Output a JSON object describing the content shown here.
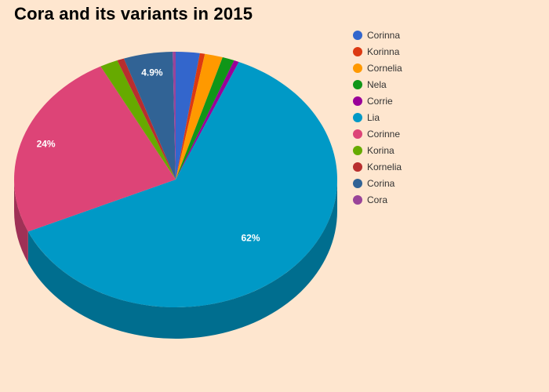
{
  "chart_data": {
    "type": "pie",
    "title": "Cora and its variants in 2015",
    "legend_position": "top-right",
    "slices": [
      {
        "name": "Corinna",
        "value": 2.4,
        "color": "#3366cc"
      },
      {
        "name": "Korinna",
        "value": 0.5,
        "color": "#dc3912"
      },
      {
        "name": "Cornelia",
        "value": 1.8,
        "color": "#ff9900"
      },
      {
        "name": "Nela",
        "value": 1.2,
        "color": "#109618"
      },
      {
        "name": "Corrie",
        "value": 0.5,
        "color": "#990099"
      },
      {
        "name": "Lia",
        "value": 62,
        "color": "#0099c6"
      },
      {
        "name": "Corinne",
        "value": 24,
        "color": "#dd4477"
      },
      {
        "name": "Korina",
        "value": 1.8,
        "color": "#66aa00"
      },
      {
        "name": "Kornelia",
        "value": 0.7,
        "color": "#b82e2e"
      },
      {
        "name": "Corina",
        "value": 4.9,
        "color": "#316395"
      },
      {
        "name": "Cora",
        "value": 0.3,
        "color": "#994499"
      }
    ],
    "data_labels": [
      {
        "slice": "Corina",
        "text": "4.9%"
      },
      {
        "slice": "Corinne",
        "text": "24%"
      },
      {
        "slice": "Lia",
        "text": "62%"
      }
    ]
  }
}
